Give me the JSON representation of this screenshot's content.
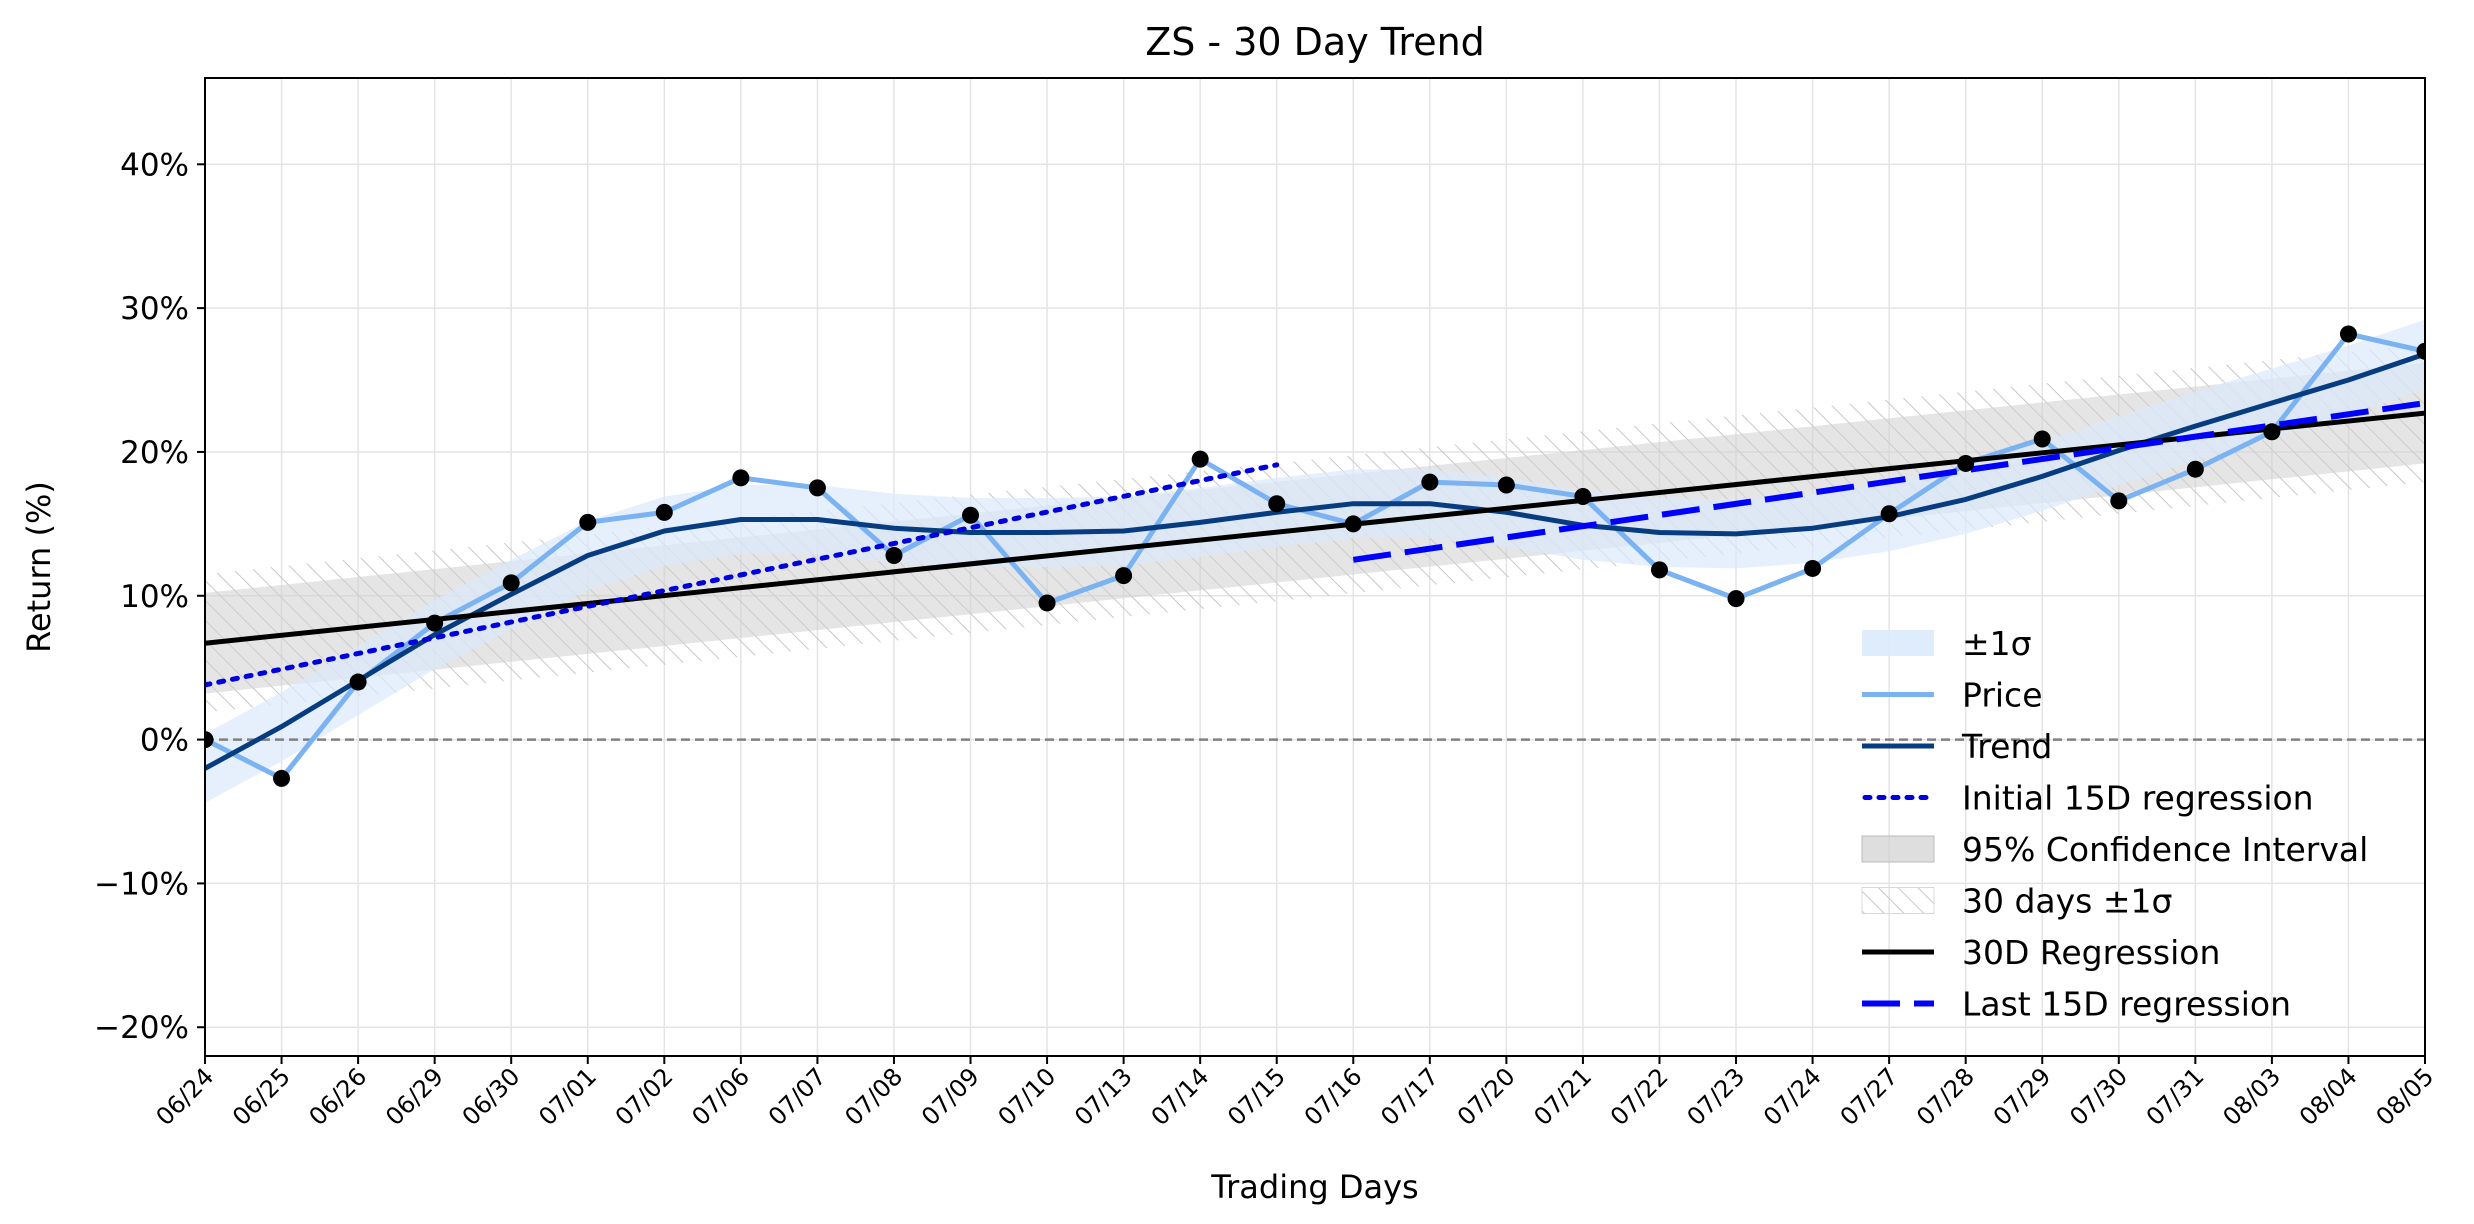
{
  "chart_data": {
    "type": "line",
    "title": "ZS - 30 Day Trend",
    "xlabel": "Trading Days",
    "ylabel": "Return (%)",
    "ylim": [
      -22,
      46
    ],
    "yticks": [
      -20,
      -10,
      0,
      10,
      20,
      30,
      40
    ],
    "ytick_labels": [
      "−20%",
      "−10%",
      "0%",
      "10%",
      "20%",
      "30%",
      "40%"
    ],
    "grid": true,
    "legend_position": "lower-right",
    "categories": [
      "06/24",
      "06/25",
      "06/26",
      "06/29",
      "06/30",
      "07/01",
      "07/02",
      "07/06",
      "07/07",
      "07/08",
      "07/09",
      "07/10",
      "07/13",
      "07/14",
      "07/15",
      "07/16",
      "07/17",
      "07/20",
      "07/21",
      "07/22",
      "07/23",
      "07/24",
      "07/27",
      "07/28",
      "07/29",
      "07/30",
      "07/31",
      "08/03",
      "08/04",
      "08/05"
    ],
    "price": [
      0.0,
      -2.7,
      4.0,
      8.1,
      10.9,
      15.1,
      15.8,
      18.2,
      17.5,
      12.8,
      15.6,
      9.5,
      11.4,
      19.5,
      16.4,
      15.0,
      17.9,
      17.7,
      16.9,
      11.8,
      9.8,
      11.9,
      15.7,
      19.2,
      20.9,
      16.6,
      18.8,
      21.4,
      28.2,
      27.0
    ],
    "trend": [
      -2.0,
      0.9,
      4.1,
      7.3,
      10.1,
      12.8,
      14.5,
      15.3,
      15.3,
      14.7,
      14.4,
      14.4,
      14.5,
      15.1,
      15.8,
      16.4,
      16.4,
      15.8,
      14.9,
      14.4,
      14.3,
      14.7,
      15.5,
      16.7,
      18.3,
      20.1,
      21.8,
      23.4,
      25.0,
      26.8
    ],
    "sigma_band": 2.4,
    "regression_30d": {
      "start": 6.7,
      "end": 22.7
    },
    "ci_95_band": 3.5,
    "days30_sigma_band": 4.8,
    "initial_15d_regression": {
      "from_index": 0,
      "to_index": 14,
      "start": 3.8,
      "end": 19.1
    },
    "last_15d_regression": {
      "from_index": 15,
      "to_index": 29,
      "start": 12.5,
      "end": 23.4
    },
    "zero_line": 0,
    "colors": {
      "price": "#7ab2f2",
      "trend": "#073d80",
      "sigma_fill": "#dbeafc",
      "regression_30d": "#000000",
      "ci_fill": "#d0d0d0",
      "hatch": "#c8c8c8",
      "initial_15d": "#0000dd",
      "last_15d": "#0000ff",
      "zero_line": "#808080",
      "grid": "#e4e4e4",
      "marker": "#000000"
    },
    "legend": [
      {
        "key": "sigma",
        "label": "±1σ"
      },
      {
        "key": "price",
        "label": "Price"
      },
      {
        "key": "trend",
        "label": "Trend"
      },
      {
        "key": "initial15",
        "label": "Initial 15D regression"
      },
      {
        "key": "ci",
        "label": "95% Confidence Interval"
      },
      {
        "key": "days30",
        "label": "30 days ±1σ"
      },
      {
        "key": "reg30",
        "label": "30D Regression"
      },
      {
        "key": "last15",
        "label": "Last 15D regression"
      }
    ]
  }
}
